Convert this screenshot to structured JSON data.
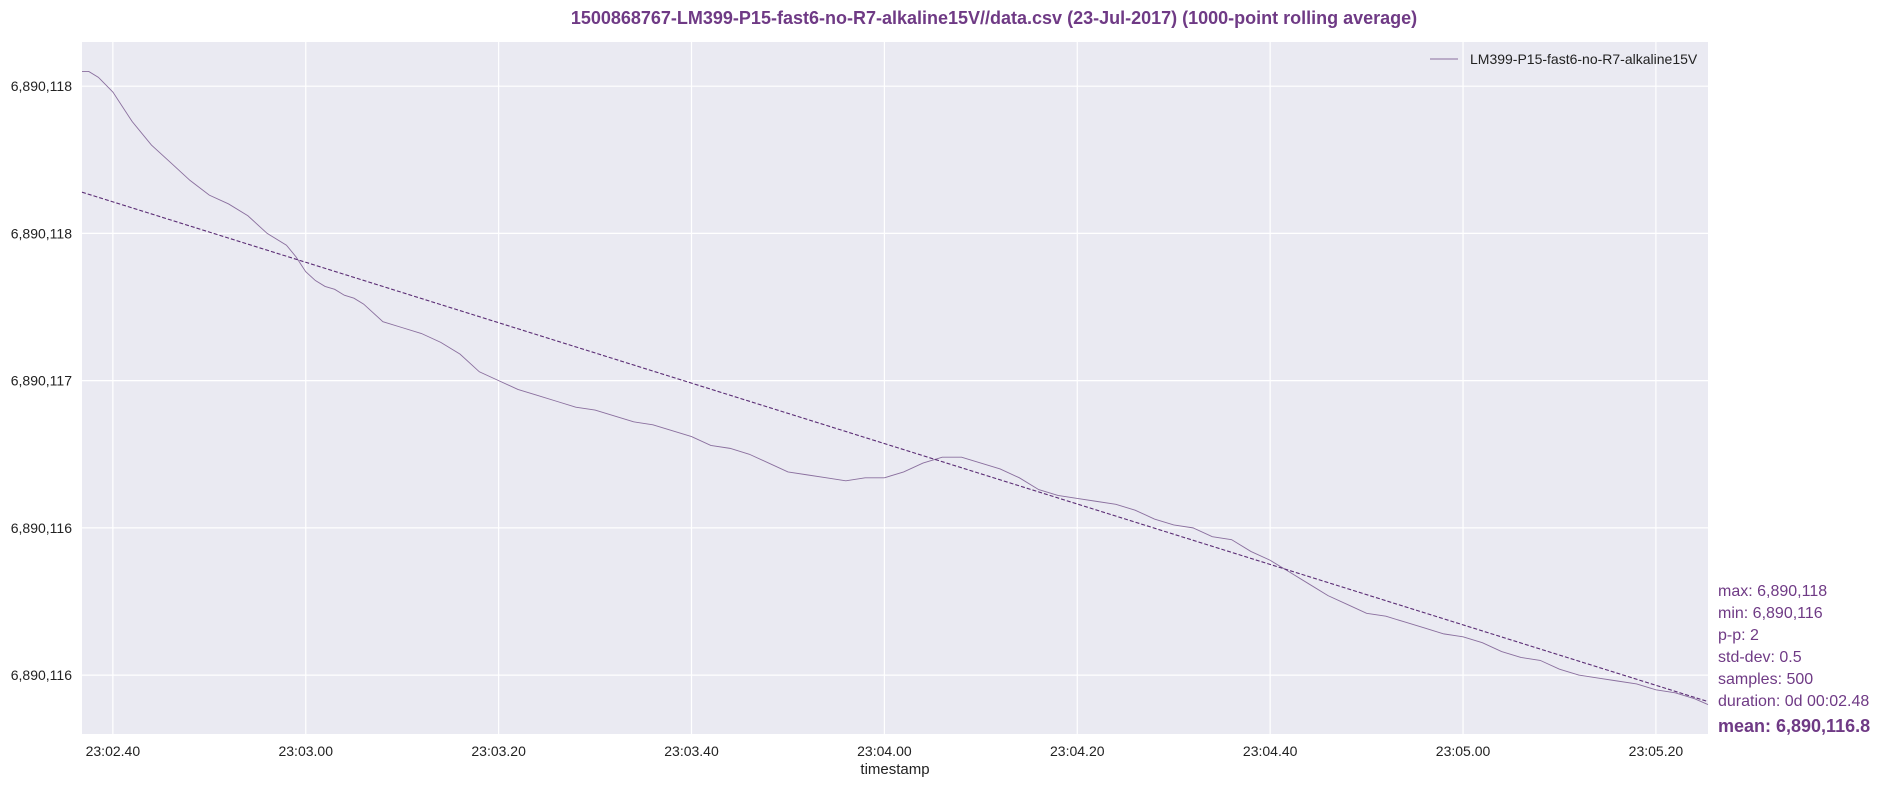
{
  "title": "1500868767-LM399-P15-fast6-no-R7-alkaline15V//data.csv (23-Jul-2017) (1000-point rolling average)",
  "colors": {
    "accent": "#6f3a85",
    "plot_bg": "#eaeaf2",
    "grid": "#ffffff",
    "series": "#8a6f9e",
    "trend": "#5b2d75"
  },
  "stats": {
    "max": "max: 6,890,118",
    "min": "min: 6,890,116",
    "pp": "p-p: 2",
    "std": "std-dev: 0.5",
    "samples": "samples: 500",
    "duration": "duration: 0d 00:02.48",
    "mean": "mean: 6,890,116.8"
  },
  "chart_data": {
    "type": "line",
    "title": "1500868767-LM399-P15-fast6-no-R7-alkaline15V//data.csv (23-Jul-2017) (1000-point rolling average)",
    "xlabel": "timestamp",
    "ylabel": "",
    "x_tick_labels": [
      "23:02.40",
      "23:03.00",
      "23:03.20",
      "23:03.40",
      "23:04.00",
      "23:04.20",
      "23:04.40",
      "23:05.00",
      "23:05.20"
    ],
    "x_tick_seconds": [
      160,
      180,
      200,
      220,
      240,
      260,
      280,
      300,
      320
    ],
    "xlim_seconds": [
      156.8,
      325.4
    ],
    "y_tick_labels": [
      "6,890,118",
      "6,890,118",
      "6,890,117",
      "6,890,116",
      "6,890,116"
    ],
    "y_tick_values": [
      6890118.0,
      6890117.5,
      6890117.0,
      6890116.5,
      6890116.0
    ],
    "ylim": [
      6890115.8,
      6890118.15
    ],
    "grid": true,
    "legend_position": "top-right",
    "series": [
      {
        "name": "LM399-P15-fast6-no-R7-alkaline15V",
        "style": "solid",
        "x": [
          156.8,
          157.5,
          158.5,
          160,
          162,
          164,
          166,
          168,
          170,
          172,
          174,
          176,
          178,
          179,
          180,
          181,
          182,
          183,
          184,
          185,
          186,
          188,
          190,
          192,
          194,
          196,
          198,
          200,
          202,
          204,
          206,
          208,
          210,
          212,
          214,
          216,
          218,
          220,
          222,
          224,
          226,
          228,
          230,
          232,
          234,
          236,
          238,
          240,
          242,
          244,
          246,
          248,
          250,
          252,
          254,
          256,
          258,
          260,
          262,
          264,
          266,
          268,
          270,
          272,
          274,
          276,
          278,
          280,
          282,
          284,
          286,
          288,
          290,
          292,
          294,
          296,
          298,
          300,
          302,
          304,
          306,
          308,
          310,
          312,
          314,
          316,
          318,
          320,
          322,
          324,
          325.4
        ],
        "y": [
          6890118.05,
          6890118.05,
          6890118.03,
          6890117.98,
          6890117.88,
          6890117.8,
          6890117.74,
          6890117.68,
          6890117.63,
          6890117.6,
          6890117.56,
          6890117.5,
          6890117.46,
          6890117.42,
          6890117.37,
          6890117.34,
          6890117.32,
          6890117.31,
          6890117.29,
          6890117.28,
          6890117.26,
          6890117.2,
          6890117.18,
          6890117.16,
          6890117.13,
          6890117.09,
          6890117.03,
          6890117.0,
          6890116.97,
          6890116.95,
          6890116.93,
          6890116.91,
          6890116.9,
          6890116.88,
          6890116.86,
          6890116.85,
          6890116.83,
          6890116.81,
          6890116.78,
          6890116.77,
          6890116.75,
          6890116.72,
          6890116.69,
          6890116.68,
          6890116.67,
          6890116.66,
          6890116.67,
          6890116.67,
          6890116.69,
          6890116.72,
          6890116.74,
          6890116.74,
          6890116.72,
          6890116.7,
          6890116.67,
          6890116.63,
          6890116.61,
          6890116.6,
          6890116.59,
          6890116.58,
          6890116.56,
          6890116.53,
          6890116.51,
          6890116.5,
          6890116.47,
          6890116.46,
          6890116.42,
          6890116.39,
          6890116.35,
          6890116.31,
          6890116.27,
          6890116.24,
          6890116.21,
          6890116.2,
          6890116.18,
          6890116.16,
          6890116.14,
          6890116.13,
          6890116.11,
          6890116.08,
          6890116.06,
          6890116.05,
          6890116.02,
          6890116.0,
          6890115.99,
          6890115.98,
          6890115.97,
          6890115.95,
          6890115.94,
          6890115.92,
          6890115.9
        ]
      },
      {
        "style": "dashed",
        "x": [
          156.8,
          325.4
        ],
        "y": [
          6890117.64,
          6890115.91
        ]
      }
    ]
  }
}
